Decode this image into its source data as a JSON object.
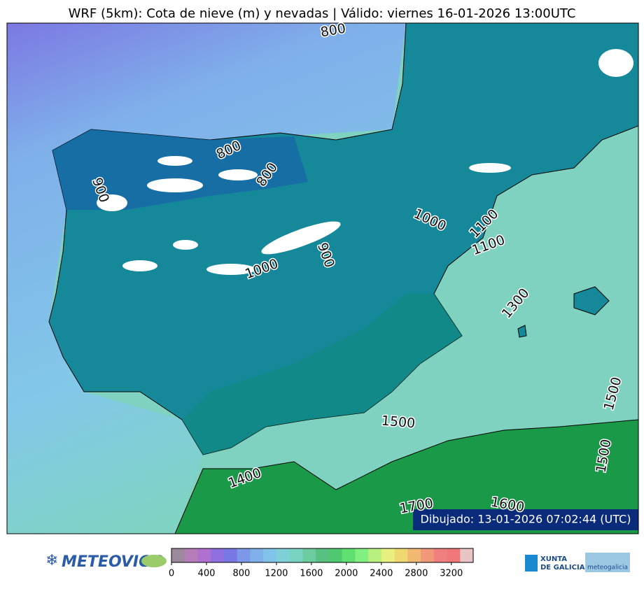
{
  "title": "WRF (5km): Cota de nieve (m) y nevadas | Válido: viernes 16-01-2026 13:00UTC",
  "map": {
    "contour_labels": [
      "800",
      "900",
      "800",
      "800",
      "1000",
      "1100",
      "1100",
      "1000",
      "900",
      "1300",
      "1500",
      "1500",
      "1500",
      "1400",
      "1700",
      "1600"
    ],
    "drawn_label": "Dibujado: 13-01-2026 07:02:44 (UTC)"
  },
  "colorbar": {
    "lim": [
      0,
      3450
    ],
    "ticks": [
      0,
      400,
      800,
      1200,
      1600,
      2000,
      2400,
      2800,
      3200
    ],
    "colors": [
      "#9c8a9c",
      "#b47cb8",
      "#b070d0",
      "#9070e0",
      "#7878e4",
      "#7c98e8",
      "#80b0ea",
      "#80c4ea",
      "#80d0d8",
      "#78d4c0",
      "#6ccca0",
      "#58c080",
      "#50c870",
      "#60e070",
      "#80f080",
      "#b8f080",
      "#e8f080",
      "#f0d870",
      "#f0b870",
      "#f09878",
      "#f08080",
      "#f07878",
      "#e8c4c4"
    ]
  },
  "logos": {
    "left": "METEOVIGO",
    "xunta_1": "XUNTA",
    "xunta_2": "DE GALICIA",
    "right": "meteogalicia"
  }
}
